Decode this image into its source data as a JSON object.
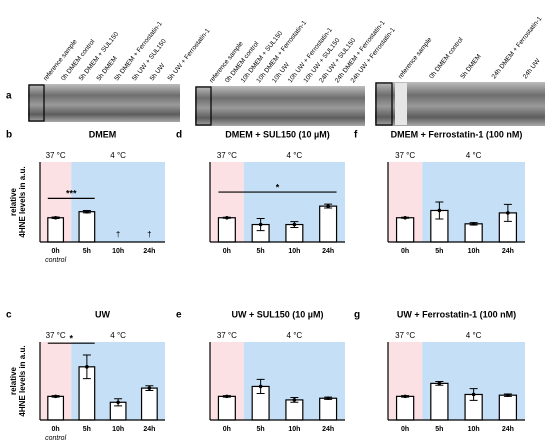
{
  "figure": {
    "panel_a": "a",
    "blots": [
      {
        "lanes": [
          "reference sample",
          "0h DMEM control",
          "5h DMEM + SUL150",
          "5h DMEM",
          "5h DMEM + Ferrostatin-1",
          "5h UW + SUL150",
          "5h UW",
          "5h UW + Ferrostatin-1"
        ]
      },
      {
        "lanes": [
          "reference sample",
          "0h DMEM control",
          "10h DMEM + SUL150",
          "10h DMEM + Ferrostatin-1",
          "10h UW",
          "10h UW + Ferrostatin-1",
          "10h UW + SUL150",
          "24h UW + SUL150",
          "24h DMEM + Ferrostatin-1",
          "24h UW + Ferrostatin-1"
        ]
      },
      {
        "lanes": [
          "reference sample",
          "0h DMEM control",
          "5h DMEM",
          "24h DMEM + Ferrostatin-1",
          "24h UW"
        ]
      }
    ]
  },
  "chart_data": [
    {
      "type": "bar",
      "panel": "b",
      "title": "DMEM",
      "ylabel": [
        "relative",
        "4HNE levels in a.u."
      ],
      "categories": [
        "0h",
        "5h",
        "10h",
        "24h"
      ],
      "category_sublabels": [
        "control",
        null,
        null,
        null
      ],
      "values": [
        1,
        1.25,
        null,
        null
      ],
      "errors": [
        0.03,
        0.05,
        null,
        null
      ],
      "missing_labels": [
        null,
        null,
        "†",
        "†"
      ],
      "regions": [
        {
          "label": "37 °C",
          "color": "#fbe1e4",
          "from": 0,
          "to": 0
        },
        {
          "label": "4 °C",
          "color": "#c5e0f6",
          "from": 1,
          "to": 3
        }
      ],
      "significance": [
        {
          "label": "***",
          "from": 0,
          "to": 1
        }
      ],
      "ylim": [
        0,
        3.3
      ],
      "color": "#ffffff"
    },
    {
      "type": "bar",
      "panel": "d",
      "title": "DMEM + SUL150  (10 µM)",
      "categories": [
        "0h",
        "5h",
        "10h",
        "24h"
      ],
      "category_sublabels": [
        null,
        null,
        null,
        null
      ],
      "values": [
        1,
        0.72,
        0.72,
        1.48
      ],
      "errors": [
        0.02,
        0.25,
        0.12,
        0.08
      ],
      "missing_labels": [
        null,
        null,
        null,
        null
      ],
      "regions": [
        {
          "label": "37 °C",
          "color": "#fbe1e4",
          "from": 0,
          "to": 0
        },
        {
          "label": "4 °C",
          "color": "#c5e0f6",
          "from": 1,
          "to": 3
        }
      ],
      "significance": [
        {
          "label": "*",
          "from": 0,
          "to": 3
        }
      ],
      "ylim": [
        0,
        3.3
      ],
      "color": "#ffffff"
    },
    {
      "type": "bar",
      "panel": "f",
      "title": "DMEM + Ferrostatin-1 (100 nM)",
      "categories": [
        "0h",
        "5h",
        "10h",
        "24h"
      ],
      "category_sublabels": [
        null,
        null,
        null,
        null
      ],
      "values": [
        1,
        1.3,
        0.75,
        1.2
      ],
      "errors": [
        0.02,
        0.35,
        0.05,
        0.35
      ],
      "missing_labels": [
        null,
        null,
        null,
        null
      ],
      "regions": [
        {
          "label": "37 °C",
          "color": "#fbe1e4",
          "from": 0,
          "to": 0
        },
        {
          "label": "4 °C",
          "color": "#c5e0f6",
          "from": 1,
          "to": 3
        }
      ],
      "significance": [],
      "ylim": [
        0,
        3.3
      ],
      "color": "#ffffff"
    },
    {
      "type": "bar",
      "panel": "c",
      "title": "UW",
      "ylabel": [
        "relative",
        "4HNE levels in a.u."
      ],
      "categories": [
        "0h",
        "5h",
        "10h",
        "24h"
      ],
      "category_sublabels": [
        "control",
        null,
        null,
        null
      ],
      "values": [
        1,
        2.25,
        0.75,
        1.35
      ],
      "errors": [
        0.03,
        0.5,
        0.15,
        0.1
      ],
      "missing_labels": [
        null,
        null,
        null,
        null
      ],
      "regions": [
        {
          "label": "37 °C",
          "color": "#fbe1e4",
          "from": 0,
          "to": 0
        },
        {
          "label": "4 °C",
          "color": "#c5e0f6",
          "from": 1,
          "to": 3
        }
      ],
      "significance": [
        {
          "label": "*",
          "from": 0,
          "to": 1
        }
      ],
      "ylim": [
        0,
        3.3
      ],
      "color": "#ffffff"
    },
    {
      "type": "bar",
      "panel": "e",
      "title": "UW + SUL150 (10 µM)",
      "categories": [
        "0h",
        "5h",
        "10h",
        "24h"
      ],
      "category_sublabels": [
        null,
        null,
        null,
        null
      ],
      "values": [
        1,
        1.42,
        0.85,
        0.92
      ],
      "errors": [
        0.03,
        0.3,
        0.1,
        0.05
      ],
      "missing_labels": [
        null,
        null,
        null,
        null
      ],
      "regions": [
        {
          "label": "37 °C",
          "color": "#fbe1e4",
          "from": 0,
          "to": 0
        },
        {
          "label": "4 °C",
          "color": "#c5e0f6",
          "from": 1,
          "to": 3
        }
      ],
      "significance": [],
      "ylim": [
        0,
        3.3
      ],
      "color": "#ffffff"
    },
    {
      "type": "bar",
      "panel": "g",
      "title": "UW + Ferrostatin-1 (100 nM)",
      "categories": [
        "0h",
        "5h",
        "10h",
        "24h"
      ],
      "category_sublabels": [
        null,
        null,
        null,
        null
      ],
      "values": [
        1,
        1.55,
        1.08,
        1.05
      ],
      "errors": [
        0.03,
        0.08,
        0.25,
        0.05
      ],
      "missing_labels": [
        null,
        null,
        null,
        null
      ],
      "regions": [
        {
          "label": "37 °C",
          "color": "#fbe1e4",
          "from": 0,
          "to": 0
        },
        {
          "label": "4 °C",
          "color": "#c5e0f6",
          "from": 1,
          "to": 3
        }
      ],
      "significance": [],
      "ylim": [
        0,
        3.3
      ],
      "color": "#ffffff"
    }
  ]
}
